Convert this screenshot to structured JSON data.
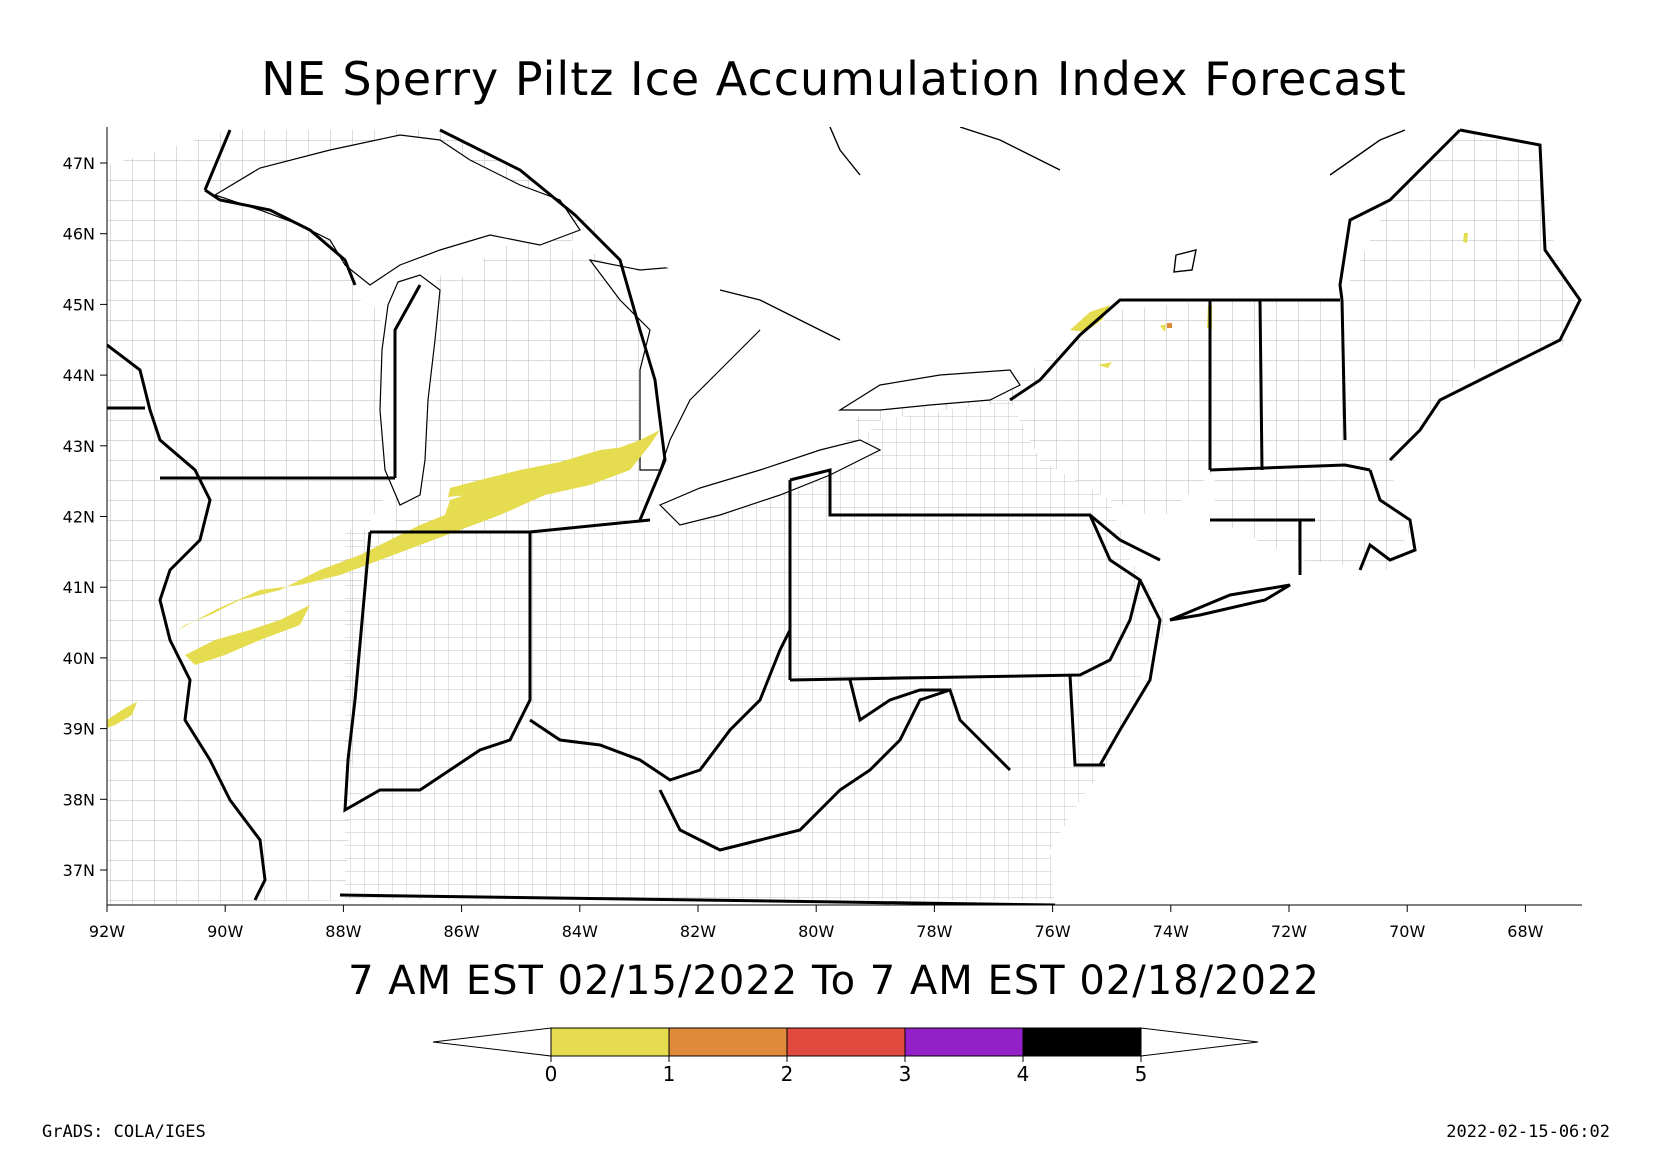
{
  "title": "NE Sperry Piltz Ice Accumulation Index Forecast",
  "subtitle": "7 AM EST 02/15/2022 To 7 AM EST 02/18/2022",
  "credit": "GrADS: COLA/IGES",
  "timestamp": "2022-02-15-06:02",
  "lat_labels": [
    "47N",
    "46N",
    "45N",
    "44N",
    "43N",
    "42N",
    "41N",
    "40N",
    "39N",
    "38N",
    "37N"
  ],
  "lon_labels": [
    "92W",
    "90W",
    "88W",
    "86W",
    "84W",
    "82W",
    "80W",
    "78W",
    "76W",
    "74W",
    "72W",
    "70W",
    "68W"
  ],
  "legend": {
    "ticks": [
      "0",
      "1",
      "2",
      "3",
      "4",
      "5"
    ],
    "colors": [
      "#e6dc50",
      "#e08a3c",
      "#e24a40",
      "#9420c8",
      "#000000"
    ]
  },
  "colors": {
    "ice_light": "#e6dc50",
    "state_border": "#000000",
    "county_border": "#bbbbbb"
  }
}
